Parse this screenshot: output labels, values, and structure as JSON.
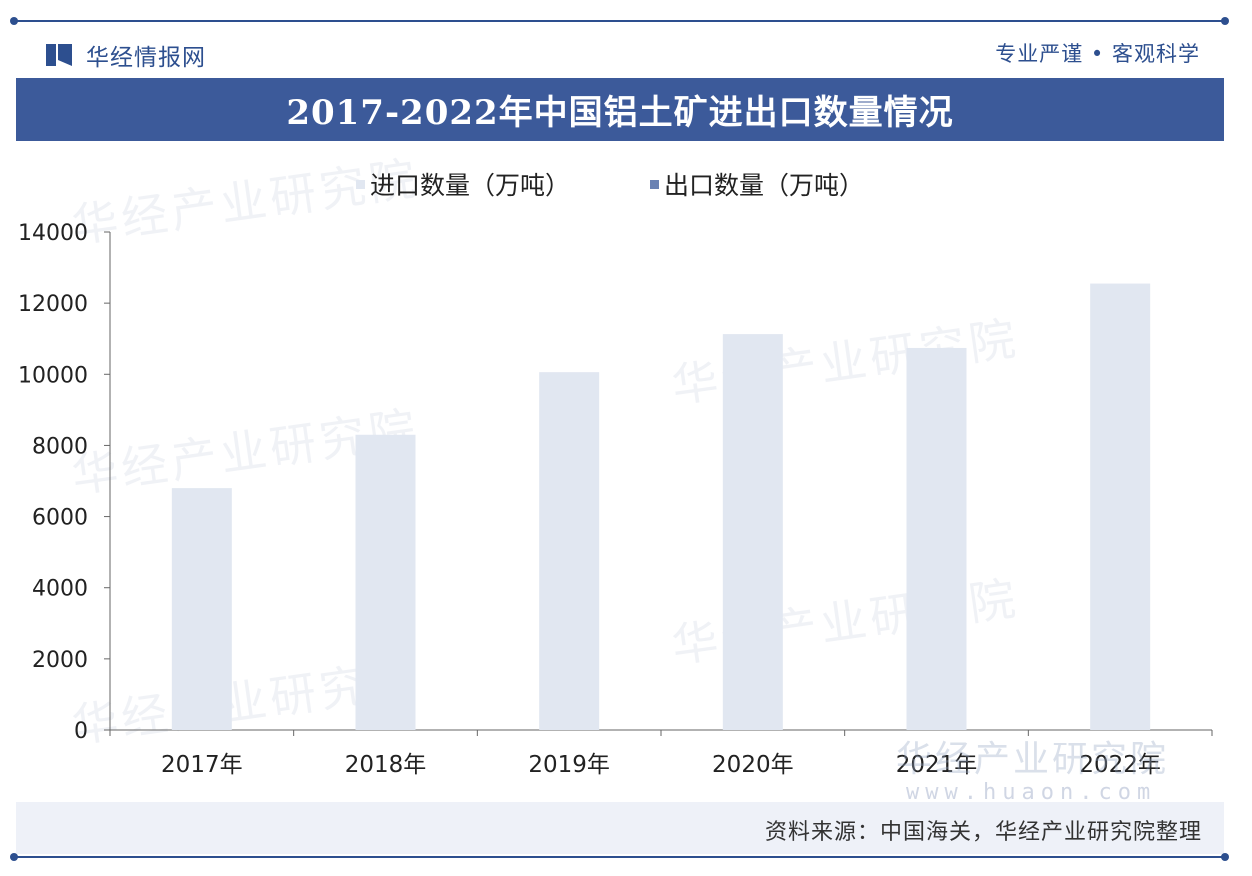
{
  "header": {
    "brand_name": "华经情报网",
    "slogan": "专业严谨 • 客观科学"
  },
  "colors": {
    "brand_blue": "#2d4f8f",
    "title_bar": "#3c5a9a",
    "import_bar": "#e1e7f1",
    "export_bar": "#6a82b3",
    "axis": "#666666"
  },
  "watermark": {
    "text": "华经产业研究院",
    "url": "www.huaon.com"
  },
  "chart_data": {
    "type": "bar",
    "title": "2017-2022年中国铝土矿进出口数量情况",
    "categories": [
      "2017年",
      "2018年",
      "2019年",
      "2020年",
      "2021年",
      "2022年"
    ],
    "series": [
      {
        "name": "进口数量（万吨）",
        "values": [
          6800,
          8300,
          10060,
          11130,
          10740,
          12550
        ]
      },
      {
        "name": "出口数量（万吨）",
        "values": [
          0,
          0,
          0,
          0,
          0,
          0
        ]
      }
    ],
    "ylim": [
      0,
      14000
    ],
    "yticks": [
      "0",
      "2000",
      "4000",
      "6000",
      "8000",
      "10000",
      "12000",
      "14000"
    ],
    "ytick_values": [
      0,
      2000,
      4000,
      6000,
      8000,
      10000,
      12000,
      14000
    ],
    "xlabel": "",
    "ylabel": "",
    "legend_position": "top",
    "grid": false
  },
  "footer": {
    "source": "资料来源：中国海关，华经产业研究院整理"
  }
}
